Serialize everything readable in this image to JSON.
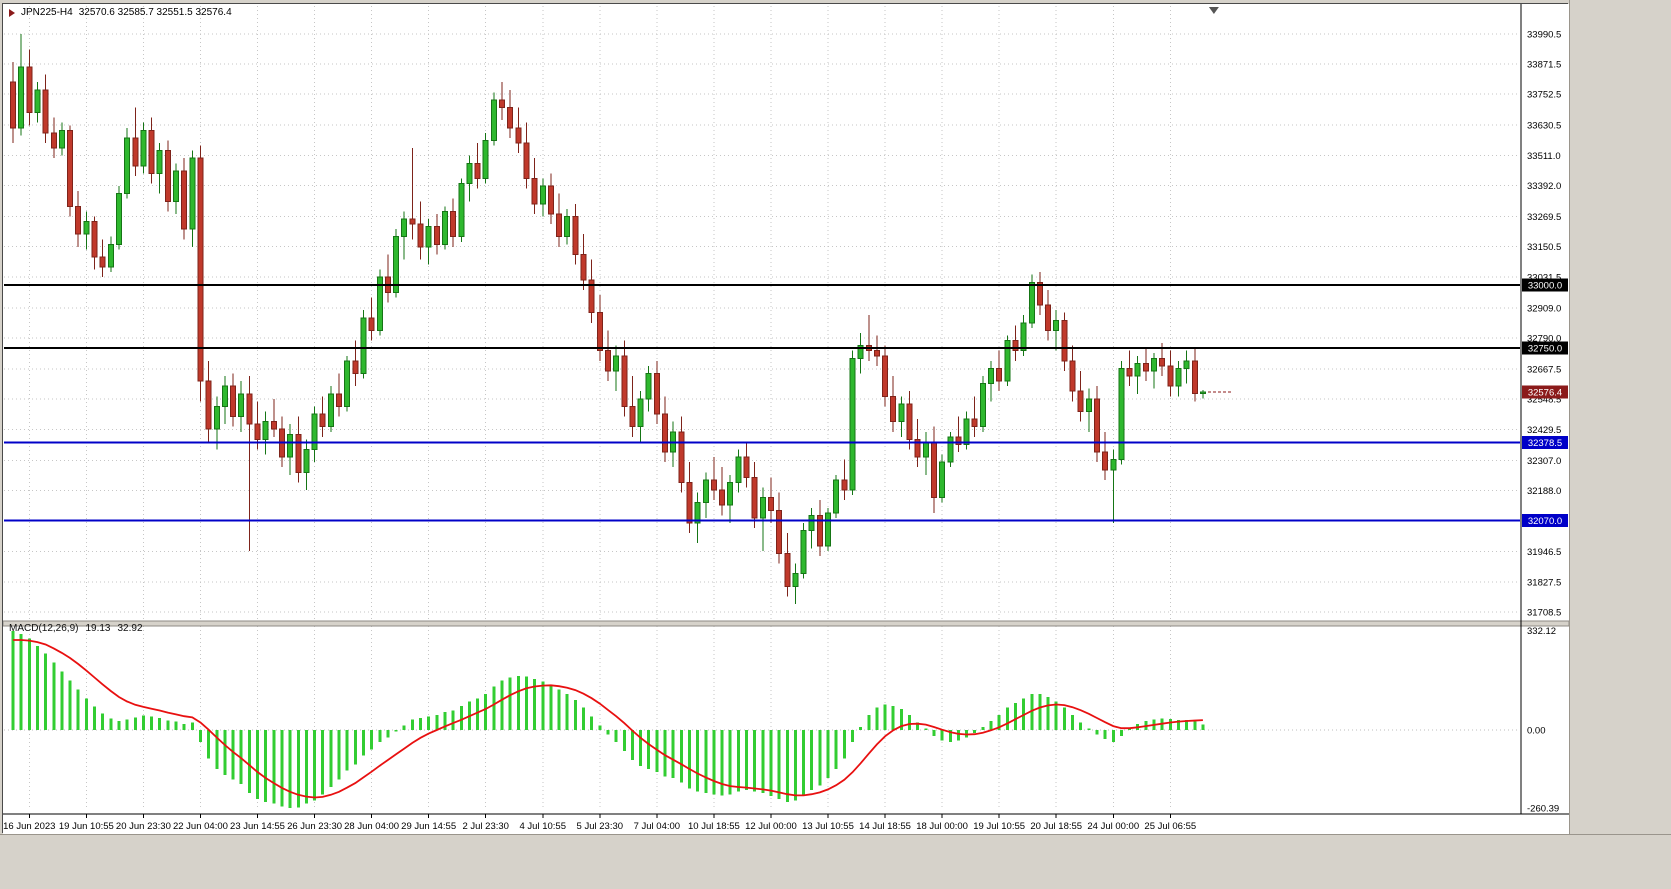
{
  "chart": {
    "symbol_label": "JPN225-H4",
    "ohlc_label": "32570.6 32585.7 32551.5 32576.4"
  },
  "chart_data": {
    "type": "candlestick",
    "symbol": "JPN225",
    "timeframe": "H4",
    "colors": {
      "up": "#2eb82e",
      "up_border": "#157515",
      "down": "#c0392b",
      "down_border": "#7e231a",
      "grid": "#c6c6c6",
      "level_black": "#000000",
      "level_blue": "#0000C8",
      "bid": "#8B1A1A",
      "macd_hist": "#32cd32",
      "macd_signal": "#e81010"
    },
    "price_axis": {
      "ticks": [
        "33990.5",
        "33871.5",
        "33752.5",
        "33630.5",
        "33511.0",
        "33392.0",
        "33269.5",
        "33150.5",
        "33031.5",
        "32909.0",
        "32790.0",
        "32667.5",
        "32548.5",
        "32429.5",
        "32307.0",
        "32188.0",
        "31946.5",
        "31827.5",
        "31708.5"
      ],
      "min": 31673,
      "max": 34085
    },
    "hlines": [
      {
        "value": 33000.0,
        "label": "33000.0",
        "color": "#000000"
      },
      {
        "value": 32750.0,
        "label": "32750.0",
        "color": "#000000"
      },
      {
        "value": 32378.5,
        "label": "32378.5",
        "color": "#0000C8"
      },
      {
        "value": 32070.0,
        "label": "32070.0",
        "color": "#0000C8"
      }
    ],
    "bid": {
      "value": 32576.4,
      "label": "32576.4",
      "color": "#8B1A1A"
    },
    "time_labels": [
      {
        "index": 2,
        "text": "16 Jun 2023"
      },
      {
        "index": 9,
        "text": "19 Jun 10:55"
      },
      {
        "index": 16,
        "text": "20 Jun 23:30"
      },
      {
        "index": 23,
        "text": "22 Jun 04:00"
      },
      {
        "index": 30,
        "text": "23 Jun 14:55"
      },
      {
        "index": 37,
        "text": "26 Jun 23:30"
      },
      {
        "index": 44,
        "text": "28 Jun 04:00"
      },
      {
        "index": 51,
        "text": "29 Jun 14:55"
      },
      {
        "index": 58,
        "text": "2 Jul 23:30"
      },
      {
        "index": 65,
        "text": "4 Jul 10:55"
      },
      {
        "index": 72,
        "text": "5 Jul 23:30"
      },
      {
        "index": 79,
        "text": "7 Jul 04:00"
      },
      {
        "index": 86,
        "text": "10 Jul 18:55"
      },
      {
        "index": 93,
        "text": "12 Jul 00:00"
      },
      {
        "index": 100,
        "text": "13 Jul 10:55"
      },
      {
        "index": 107,
        "text": "14 Jul 18:55"
      },
      {
        "index": 114,
        "text": "18 Jul 00:00"
      },
      {
        "index": 121,
        "text": "19 Jul 10:55"
      },
      {
        "index": 128,
        "text": "20 Jul 18:55"
      },
      {
        "index": 135,
        "text": "24 Jul 00:00"
      },
      {
        "index": 142,
        "text": "25 Jul 06:55"
      }
    ],
    "candles": [
      [
        33800,
        33880,
        33560,
        33620
      ],
      [
        33620,
        33990,
        33590,
        33860
      ],
      [
        33860,
        33930,
        33630,
        33680
      ],
      [
        33680,
        33800,
        33640,
        33770
      ],
      [
        33770,
        33830,
        33560,
        33600
      ],
      [
        33600,
        33660,
        33500,
        33540
      ],
      [
        33540,
        33640,
        33510,
        33610
      ],
      [
        33610,
        33630,
        33270,
        33310
      ],
      [
        33310,
        33370,
        33150,
        33200
      ],
      [
        33200,
        33290,
        33140,
        33250
      ],
      [
        33250,
        33270,
        33060,
        33110
      ],
      [
        33110,
        33180,
        33030,
        33070
      ],
      [
        33070,
        33190,
        33050,
        33160
      ],
      [
        33160,
        33390,
        33140,
        33360
      ],
      [
        33360,
        33620,
        33340,
        33580
      ],
      [
        33580,
        33700,
        33430,
        33470
      ],
      [
        33470,
        33640,
        33440,
        33610
      ],
      [
        33610,
        33660,
        33400,
        33440
      ],
      [
        33440,
        33560,
        33360,
        33530
      ],
      [
        33530,
        33570,
        33290,
        33330
      ],
      [
        33330,
        33480,
        33280,
        33450
      ],
      [
        33450,
        33500,
        33180,
        33220
      ],
      [
        33220,
        33530,
        33150,
        33500
      ],
      [
        33500,
        33550,
        32540,
        32620
      ],
      [
        32620,
        32700,
        32380,
        32430
      ],
      [
        32430,
        32560,
        32350,
        32520
      ],
      [
        32520,
        32640,
        32450,
        32600
      ],
      [
        32600,
        32650,
        32440,
        32480
      ],
      [
        32480,
        32620,
        32420,
        32570
      ],
      [
        32570,
        32640,
        31950,
        32450
      ],
      [
        32450,
        32540,
        32350,
        32390
      ],
      [
        32390,
        32500,
        32330,
        32460
      ],
      [
        32460,
        32550,
        32400,
        32430
      ],
      [
        32430,
        32480,
        32280,
        32320
      ],
      [
        32320,
        32450,
        32250,
        32410
      ],
      [
        32410,
        32480,
        32220,
        32260
      ],
      [
        32260,
        32390,
        32190,
        32350
      ],
      [
        32350,
        32520,
        32300,
        32490
      ],
      [
        32490,
        32560,
        32400,
        32440
      ],
      [
        32440,
        32600,
        32420,
        32570
      ],
      [
        32570,
        32650,
        32480,
        32520
      ],
      [
        32520,
        32720,
        32500,
        32700
      ],
      [
        32700,
        32780,
        32600,
        32650
      ],
      [
        32650,
        32900,
        32630,
        32870
      ],
      [
        32870,
        32950,
        32780,
        32820
      ],
      [
        32820,
        33060,
        32800,
        33030
      ],
      [
        33030,
        33120,
        32930,
        32970
      ],
      [
        32970,
        33220,
        32950,
        33190
      ],
      [
        33190,
        33290,
        33100,
        33260
      ],
      [
        33260,
        33540,
        33180,
        33240
      ],
      [
        33240,
        33330,
        33100,
        33150
      ],
      [
        33150,
        33260,
        33080,
        33230
      ],
      [
        33230,
        33280,
        33120,
        33160
      ],
      [
        33160,
        33310,
        33140,
        33290
      ],
      [
        33290,
        33340,
        33150,
        33190
      ],
      [
        33190,
        33420,
        33170,
        33400
      ],
      [
        33400,
        33510,
        33330,
        33480
      ],
      [
        33480,
        33560,
        33380,
        33420
      ],
      [
        33420,
        33600,
        33400,
        33570
      ],
      [
        33570,
        33760,
        33550,
        33730
      ],
      [
        33730,
        33800,
        33650,
        33700
      ],
      [
        33700,
        33770,
        33580,
        33620
      ],
      [
        33620,
        33700,
        33520,
        33560
      ],
      [
        33560,
        33640,
        33380,
        33420
      ],
      [
        33420,
        33500,
        33280,
        33320
      ],
      [
        33320,
        33420,
        33270,
        33390
      ],
      [
        33390,
        33440,
        33240,
        33280
      ],
      [
        33280,
        33360,
        33150,
        33190
      ],
      [
        33190,
        33300,
        33160,
        33270
      ],
      [
        33270,
        33320,
        33080,
        33120
      ],
      [
        33120,
        33200,
        32980,
        33020
      ],
      [
        33020,
        33100,
        32850,
        32890
      ],
      [
        32890,
        32960,
        32700,
        32740
      ],
      [
        32740,
        32820,
        32620,
        32660
      ],
      [
        32660,
        32760,
        32580,
        32720
      ],
      [
        32720,
        32780,
        32480,
        32520
      ],
      [
        32520,
        32640,
        32400,
        32440
      ],
      [
        32440,
        32580,
        32380,
        32550
      ],
      [
        32550,
        32680,
        32500,
        32650
      ],
      [
        32650,
        32700,
        32450,
        32490
      ],
      [
        32490,
        32560,
        32300,
        32340
      ],
      [
        32340,
        32460,
        32280,
        32420
      ],
      [
        32420,
        32480,
        32180,
        32220
      ],
      [
        32220,
        32300,
        32020,
        32060
      ],
      [
        32060,
        32180,
        31980,
        32140
      ],
      [
        32140,
        32260,
        32080,
        32230
      ],
      [
        32230,
        32320,
        32150,
        32190
      ],
      [
        32190,
        32280,
        32090,
        32130
      ],
      [
        32130,
        32250,
        32060,
        32220
      ],
      [
        32220,
        32350,
        32180,
        32320
      ],
      [
        32320,
        32380,
        32200,
        32240
      ],
      [
        32240,
        32300,
        32040,
        32080
      ],
      [
        32080,
        32200,
        31950,
        32160
      ],
      [
        32160,
        32240,
        32060,
        32110
      ],
      [
        32110,
        32180,
        31900,
        31940
      ],
      [
        31940,
        32020,
        31770,
        31810
      ],
      [
        31810,
        31900,
        31740,
        31860
      ],
      [
        31860,
        32060,
        31840,
        32030
      ],
      [
        32030,
        32120,
        31960,
        32090
      ],
      [
        32090,
        32150,
        31930,
        31970
      ],
      [
        31970,
        32120,
        31950,
        32100
      ],
      [
        32100,
        32250,
        32080,
        32230
      ],
      [
        32230,
        32310,
        32150,
        32190
      ],
      [
        32190,
        32740,
        32170,
        32710
      ],
      [
        32710,
        32810,
        32650,
        32760
      ],
      [
        32760,
        32880,
        32700,
        32740
      ],
      [
        32740,
        32800,
        32680,
        32720
      ],
      [
        32720,
        32760,
        32520,
        32560
      ],
      [
        32560,
        32640,
        32420,
        32460
      ],
      [
        32460,
        32560,
        32400,
        32530
      ],
      [
        32530,
        32580,
        32350,
        32390
      ],
      [
        32390,
        32470,
        32280,
        32320
      ],
      [
        32320,
        32420,
        32250,
        32380
      ],
      [
        32380,
        32440,
        32100,
        32160
      ],
      [
        32160,
        32330,
        32140,
        32300
      ],
      [
        32300,
        32420,
        32280,
        32400
      ],
      [
        32400,
        32480,
        32340,
        32370
      ],
      [
        32370,
        32500,
        32350,
        32470
      ],
      [
        32470,
        32560,
        32400,
        32440
      ],
      [
        32440,
        32640,
        32420,
        32610
      ],
      [
        32610,
        32700,
        32540,
        32670
      ],
      [
        32670,
        32740,
        32580,
        32620
      ],
      [
        32620,
        32800,
        32600,
        32780
      ],
      [
        32780,
        32840,
        32700,
        32740
      ],
      [
        32740,
        32880,
        32720,
        32850
      ],
      [
        32850,
        33040,
        32830,
        33010
      ],
      [
        33010,
        33050,
        32880,
        32920
      ],
      [
        32920,
        32980,
        32780,
        32820
      ],
      [
        32820,
        32900,
        32740,
        32860
      ],
      [
        32860,
        32890,
        32660,
        32700
      ],
      [
        32700,
        32760,
        32540,
        32580
      ],
      [
        32580,
        32660,
        32460,
        32500
      ],
      [
        32500,
        32590,
        32420,
        32550
      ],
      [
        32550,
        32600,
        32300,
        32340
      ],
      [
        32340,
        32420,
        32230,
        32270
      ],
      [
        32270,
        32350,
        32060,
        32310
      ],
      [
        32310,
        32700,
        32290,
        32670
      ],
      [
        32670,
        32740,
        32600,
        32640
      ],
      [
        32640,
        32720,
        32570,
        32690
      ],
      [
        32690,
        32750,
        32620,
        32660
      ],
      [
        32660,
        32730,
        32590,
        32710
      ],
      [
        32710,
        32770,
        32640,
        32680
      ],
      [
        32680,
        32740,
        32560,
        32600
      ],
      [
        32600,
        32700,
        32560,
        32670
      ],
      [
        32670,
        32740,
        32610,
        32700
      ],
      [
        32700,
        32750,
        32540,
        32570.6
      ],
      [
        32570.6,
        32585.7,
        32551.5,
        32576.4
      ]
    ],
    "macd": {
      "label": "MACD(12,26,9)",
      "macd_value": "19.13",
      "signal_value": "32.92",
      "axis_ticks": [
        "332.12",
        "0.00",
        "-260.39"
      ],
      "histogram": [
        330,
        320,
        305,
        280,
        255,
        225,
        195,
        165,
        135,
        105,
        78,
        55,
        38,
        30,
        35,
        42,
        48,
        45,
        40,
        32,
        28,
        20,
        25,
        -40,
        -95,
        -130,
        -150,
        -165,
        -180,
        -210,
        -230,
        -240,
        -245,
        -255,
        -260,
        -258,
        -245,
        -235,
        -215,
        -190,
        -165,
        -135,
        -115,
        -85,
        -65,
        -40,
        -25,
        -5,
        15,
        35,
        40,
        45,
        50,
        60,
        65,
        80,
        95,
        105,
        120,
        145,
        165,
        175,
        180,
        178,
        170,
        162,
        150,
        135,
        120,
        100,
        75,
        45,
        15,
        -15,
        -40,
        -70,
        -100,
        -120,
        -130,
        -140,
        -155,
        -160,
        -175,
        -195,
        -205,
        -210,
        -215,
        -218,
        -215,
        -205,
        -200,
        -205,
        -210,
        -220,
        -230,
        -240,
        -235,
        -220,
        -200,
        -185,
        -160,
        -130,
        -95,
        -40,
        10,
        50,
        75,
        85,
        80,
        70,
        50,
        25,
        5,
        -20,
        -35,
        -40,
        -35,
        -25,
        -10,
        10,
        30,
        50,
        75,
        90,
        105,
        120,
        120,
        110,
        95,
        75,
        50,
        25,
        5,
        -15,
        -30,
        -40,
        -20,
        5,
        20,
        30,
        35,
        38,
        36,
        34,
        33,
        28,
        19.13
      ],
      "signal": [
        300,
        300,
        298,
        293,
        285,
        272,
        257,
        240,
        220,
        198,
        175,
        152,
        130,
        110,
        95,
        84,
        77,
        71,
        65,
        58,
        52,
        46,
        42,
        25,
        1,
        -25,
        -50,
        -73,
        -94,
        -117,
        -140,
        -160,
        -177,
        -193,
        -206,
        -216,
        -222,
        -225,
        -223,
        -216,
        -206,
        -192,
        -177,
        -158,
        -139,
        -119,
        -100,
        -81,
        -62,
        -43,
        -26,
        -12,
        0,
        12,
        23,
        34,
        46,
        58,
        70,
        85,
        101,
        116,
        129,
        139,
        145,
        148,
        149,
        146,
        141,
        133,
        121,
        106,
        88,
        67,
        46,
        23,
        -2,
        -26,
        -47,
        -66,
        -84,
        -99,
        -114,
        -130,
        -145,
        -158,
        -170,
        -180,
        -187,
        -190,
        -192,
        -195,
        -198,
        -202,
        -208,
        -214,
        -218,
        -218,
        -214,
        -208,
        -198,
        -184,
        -166,
        -141,
        -111,
        -79,
        -48,
        -21,
        -1,
        13,
        20,
        21,
        18,
        10,
        1,
        -7,
        -13,
        -15,
        -14,
        -9,
        -1,
        9,
        22,
        36,
        50,
        64,
        75,
        82,
        85,
        83,
        76,
        66,
        54,
        40,
        26,
        13,
        6,
        6,
        9,
        13,
        17,
        21,
        25,
        28,
        30,
        31.5,
        32.92
      ]
    }
  }
}
